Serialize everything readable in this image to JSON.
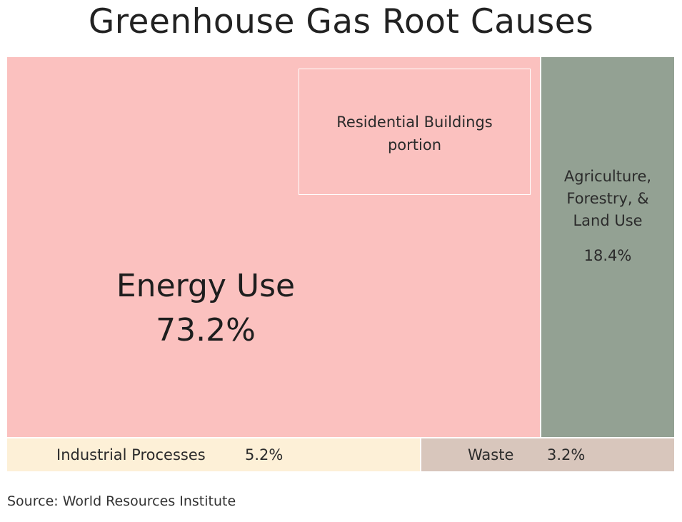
{
  "chart_data": {
    "type": "treemap",
    "title": "Greenhouse Gas Root Causes",
    "source": "Source: World Resources Institute",
    "unit": "%",
    "segments": [
      {
        "name": "Energy Use",
        "value": 73.2,
        "value_label": "73.2%",
        "color": "#fbc1bf"
      },
      {
        "name": "Agriculture, Forestry, & Land Use",
        "name_lines": [
          "Agriculture,",
          "Forestry, &",
          "Land Use"
        ],
        "value": 18.4,
        "value_label": "18.4%",
        "color": "#93a193"
      },
      {
        "name": "Industrial Processes",
        "value": 5.2,
        "value_label": "5.2%",
        "color": "#fdf0d7"
      },
      {
        "name": "Waste",
        "value": 3.2,
        "value_label": "3.2%",
        "color": "#d8c6bc"
      }
    ],
    "annotation": {
      "text_lines": [
        "Residential Buildings",
        "portion"
      ],
      "parent": "Energy Use"
    }
  }
}
